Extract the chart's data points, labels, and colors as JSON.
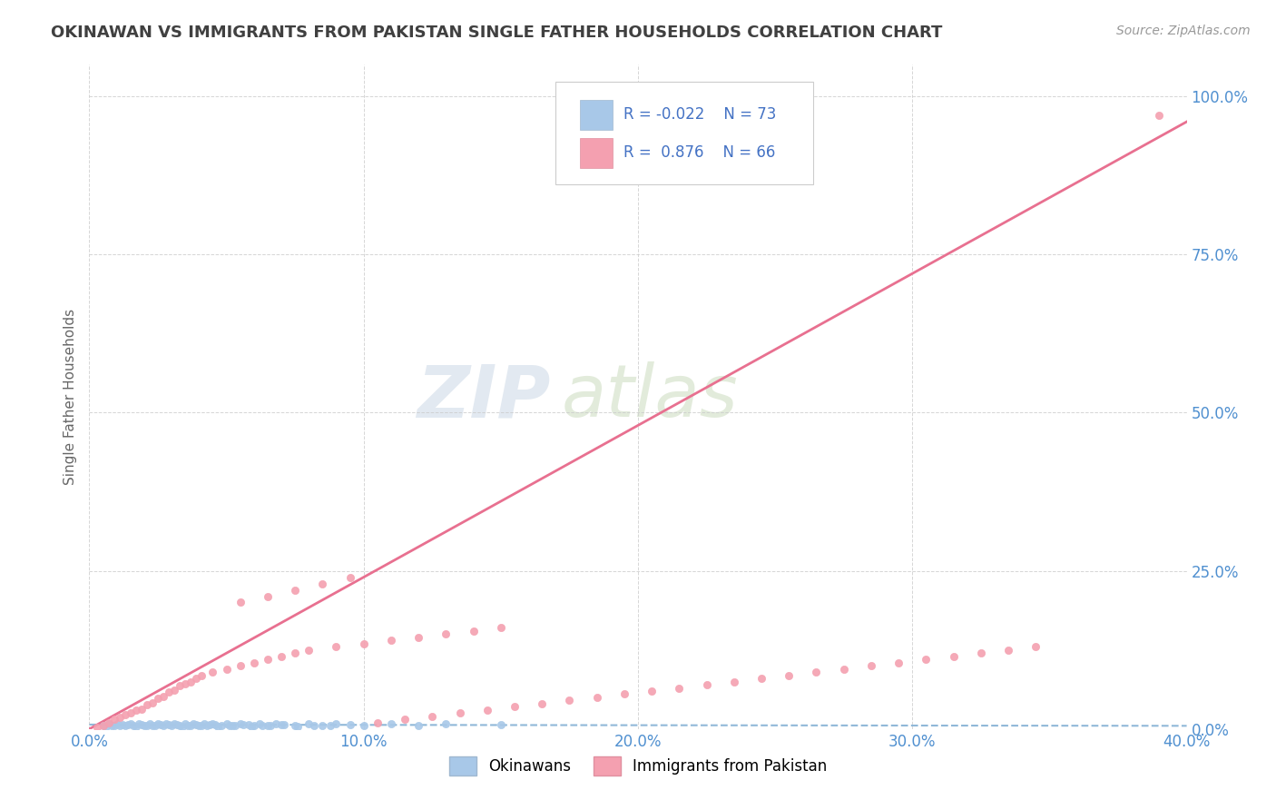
{
  "title": "OKINAWAN VS IMMIGRANTS FROM PAKISTAN SINGLE FATHER HOUSEHOLDS CORRELATION CHART",
  "source": "Source: ZipAtlas.com",
  "ylabel": "Single Father Households",
  "okinawan_color": "#a8c8e8",
  "pakistan_color": "#f4a0b0",
  "okinawan_R": -0.022,
  "okinawan_N": 73,
  "pakistan_R": 0.876,
  "pakistan_N": 66,
  "background_color": "#ffffff",
  "grid_color": "#cccccc",
  "legend_label_1": "Okinawans",
  "legend_label_2": "Immigrants from Pakistan",
  "watermark_zip": "ZIP",
  "watermark_atlas": "atlas",
  "xlim": [
    0.0,
    0.4
  ],
  "ylim": [
    0.0,
    1.05
  ],
  "xticks": [
    0.0,
    0.1,
    0.2,
    0.3,
    0.4
  ],
  "yticks": [
    0.0,
    0.25,
    0.5,
    0.75,
    1.0
  ],
  "regression_line_color": "#e87090",
  "regression_dashed_color": "#90b8d8",
  "title_color": "#404040",
  "tick_label_color": "#5090d0",
  "pk_slope": 2.45,
  "pk_intercept": -0.02,
  "ok_slope": -0.005,
  "ok_intercept": 0.007,
  "okinawan_x": [
    0.005,
    0.007,
    0.008,
    0.01,
    0.012,
    0.013,
    0.015,
    0.016,
    0.018,
    0.019,
    0.02,
    0.022,
    0.023,
    0.025,
    0.026,
    0.027,
    0.028,
    0.03,
    0.031,
    0.032,
    0.033,
    0.035,
    0.036,
    0.038,
    0.039,
    0.04,
    0.042,
    0.043,
    0.045,
    0.046,
    0.048,
    0.05,
    0.052,
    0.055,
    0.058,
    0.06,
    0.062,
    0.065,
    0.068,
    0.07,
    0.075,
    0.08,
    0.085,
    0.09,
    0.095,
    0.1,
    0.11,
    0.12,
    0.13,
    0.15,
    0.006,
    0.009,
    0.011,
    0.014,
    0.017,
    0.021,
    0.024,
    0.029,
    0.034,
    0.037,
    0.041,
    0.044,
    0.047,
    0.051,
    0.053,
    0.056,
    0.059,
    0.063,
    0.066,
    0.071,
    0.076,
    0.082,
    0.088
  ],
  "okinawan_y": [
    0.005,
    0.008,
    0.006,
    0.009,
    0.007,
    0.005,
    0.008,
    0.006,
    0.009,
    0.007,
    0.005,
    0.008,
    0.006,
    0.009,
    0.007,
    0.005,
    0.008,
    0.006,
    0.009,
    0.007,
    0.005,
    0.008,
    0.006,
    0.009,
    0.007,
    0.005,
    0.008,
    0.006,
    0.009,
    0.007,
    0.005,
    0.008,
    0.006,
    0.009,
    0.007,
    0.005,
    0.008,
    0.006,
    0.009,
    0.007,
    0.005,
    0.008,
    0.006,
    0.009,
    0.007,
    0.005,
    0.008,
    0.006,
    0.009,
    0.007,
    0.004,
    0.006,
    0.005,
    0.007,
    0.004,
    0.006,
    0.005,
    0.007,
    0.004,
    0.006,
    0.005,
    0.007,
    0.004,
    0.006,
    0.005,
    0.007,
    0.004,
    0.006,
    0.005,
    0.007,
    0.004,
    0.006,
    0.005
  ],
  "pakistan_x": [
    0.003,
    0.005,
    0.007,
    0.009,
    0.011,
    0.013,
    0.015,
    0.017,
    0.019,
    0.021,
    0.023,
    0.025,
    0.027,
    0.029,
    0.031,
    0.033,
    0.035,
    0.037,
    0.039,
    0.041,
    0.045,
    0.05,
    0.055,
    0.06,
    0.065,
    0.07,
    0.075,
    0.08,
    0.09,
    0.1,
    0.11,
    0.12,
    0.13,
    0.14,
    0.15,
    0.055,
    0.065,
    0.075,
    0.085,
    0.095,
    0.105,
    0.115,
    0.125,
    0.135,
    0.145,
    0.155,
    0.165,
    0.175,
    0.185,
    0.195,
    0.205,
    0.215,
    0.225,
    0.235,
    0.245,
    0.255,
    0.265,
    0.275,
    0.285,
    0.295,
    0.305,
    0.315,
    0.325,
    0.335,
    0.345,
    0.39
  ],
  "pakistan_y": [
    0.003,
    0.005,
    0.01,
    0.015,
    0.018,
    0.022,
    0.025,
    0.03,
    0.032,
    0.038,
    0.042,
    0.048,
    0.052,
    0.058,
    0.062,
    0.068,
    0.072,
    0.075,
    0.08,
    0.085,
    0.09,
    0.095,
    0.1,
    0.105,
    0.11,
    0.115,
    0.12,
    0.125,
    0.13,
    0.135,
    0.14,
    0.145,
    0.15,
    0.155,
    0.16,
    0.2,
    0.21,
    0.22,
    0.23,
    0.24,
    0.01,
    0.015,
    0.02,
    0.025,
    0.03,
    0.035,
    0.04,
    0.045,
    0.05,
    0.055,
    0.06,
    0.065,
    0.07,
    0.075,
    0.08,
    0.085,
    0.09,
    0.095,
    0.1,
    0.105,
    0.11,
    0.115,
    0.12,
    0.125,
    0.13,
    0.97
  ]
}
